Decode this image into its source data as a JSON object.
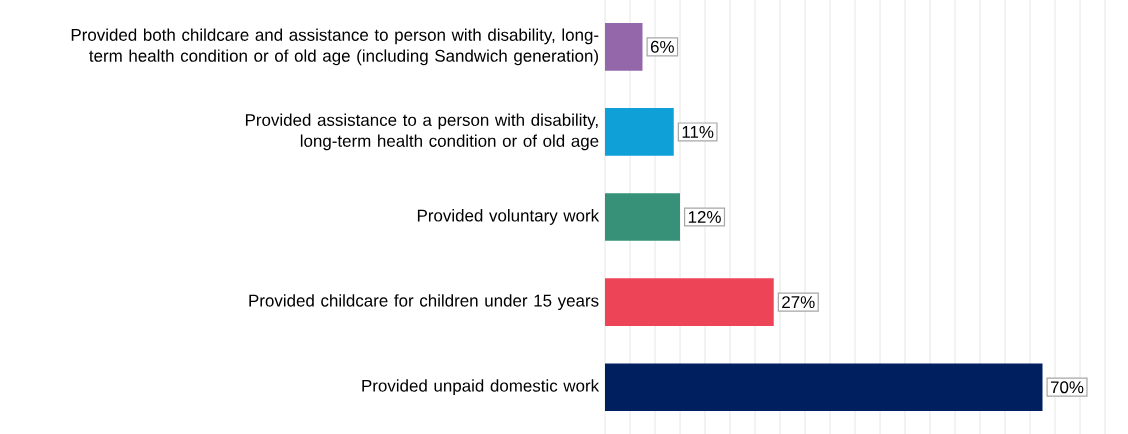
{
  "chart_data": {
    "type": "bar",
    "orientation": "horizontal",
    "categories": [
      "Provided both childcare and assistance to person with disability, long-term health condition or of old age (including Sandwich generation)",
      "Provided assistance to a person with disability, long-term health condition or of old age",
      "Provided voluntary work",
      "Provided childcare for children under 15 years",
      "Provided unpaid domestic work"
    ],
    "values": [
      6,
      11,
      12,
      27,
      70
    ],
    "value_labels": [
      "6%",
      "11%",
      "12%",
      "27%",
      "70%"
    ],
    "colors": [
      "#9467aa",
      "#10a0d8",
      "#369178",
      "#ee4458",
      "#001f5f"
    ],
    "xlim": [
      0,
      80
    ],
    "xticks": [
      {
        "value": 0,
        "label": null
      },
      {
        "value": 4,
        "label": null
      },
      {
        "value": 8,
        "label": null
      },
      {
        "value": 12,
        "label": null
      },
      {
        "value": 16,
        "label": null
      },
      {
        "value": 20,
        "label": null
      },
      {
        "value": 24,
        "label": null
      },
      {
        "value": 28,
        "label": null
      },
      {
        "value": 32,
        "label": null
      },
      {
        "value": 36,
        "label": null
      },
      {
        "value": 40,
        "label": null
      },
      {
        "value": 44,
        "label": null
      },
      {
        "value": 48,
        "label": null
      },
      {
        "value": 52,
        "label": null
      },
      {
        "value": 56,
        "label": null
      },
      {
        "value": 60,
        "label": null
      },
      {
        "value": 64,
        "label": null
      },
      {
        "value": 68,
        "label": null
      },
      {
        "value": 72,
        "label": null
      },
      {
        "value": 76,
        "label": null
      },
      {
        "value": 80,
        "label": null
      }
    ],
    "grid": "x"
  }
}
